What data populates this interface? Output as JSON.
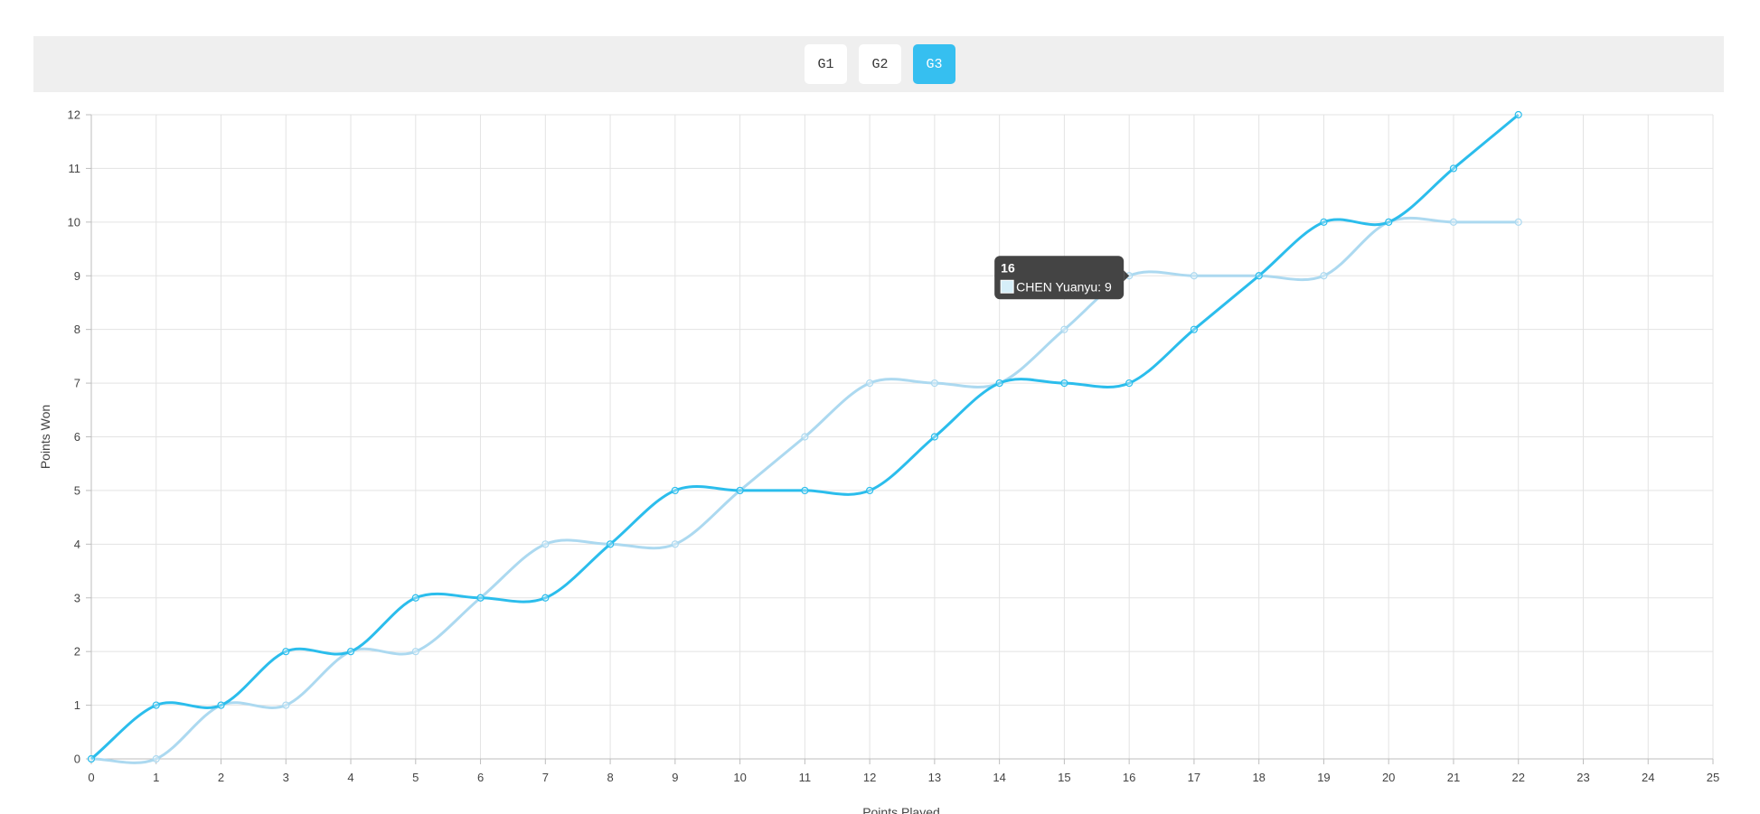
{
  "games": {
    "tabs": [
      {
        "label": "G1",
        "active": false
      },
      {
        "label": "G2",
        "active": false
      },
      {
        "label": "G3",
        "active": true
      }
    ]
  },
  "colors": {
    "accent": "#36bff0",
    "series_dark": "#2bbdec",
    "series_light": "#acd9f0",
    "tooltip_bg": "#444444"
  },
  "chart_data": {
    "type": "line",
    "title": "",
    "xlabel": "Points Played",
    "ylabel": "Points Won",
    "xlim": [
      0,
      25
    ],
    "ylim": [
      0,
      12
    ],
    "x_ticks": [
      0,
      1,
      2,
      3,
      4,
      5,
      6,
      7,
      8,
      9,
      10,
      11,
      12,
      13,
      14,
      15,
      16,
      17,
      18,
      19,
      20,
      21,
      22,
      23,
      24,
      25
    ],
    "y_ticks": [
      0,
      1,
      2,
      3,
      4,
      5,
      6,
      7,
      8,
      9,
      10,
      11,
      12
    ],
    "grid": true,
    "x": [
      0,
      1,
      2,
      3,
      4,
      5,
      6,
      7,
      8,
      9,
      10,
      11,
      12,
      13,
      14,
      15,
      16,
      17,
      18,
      19,
      20,
      21,
      22
    ],
    "series": [
      {
        "values": [
          0,
          1,
          1,
          2,
          2,
          3,
          3,
          3,
          4,
          5,
          5,
          5,
          5,
          6,
          7,
          7,
          7,
          8,
          9,
          10,
          10,
          11,
          12
        ],
        "color": "#2bbdec"
      },
      {
        "name": "CHEN Yuanyu",
        "values": [
          0,
          0,
          1,
          1,
          2,
          2,
          3,
          4,
          4,
          4,
          5,
          6,
          7,
          7,
          7,
          8,
          9,
          9,
          9,
          9,
          10,
          10,
          10
        ],
        "color": "#acd9f0"
      }
    ],
    "tooltip": {
      "title": "16",
      "label": "CHEN Yuanyu: 9",
      "series_index": 1,
      "x": 16
    }
  }
}
